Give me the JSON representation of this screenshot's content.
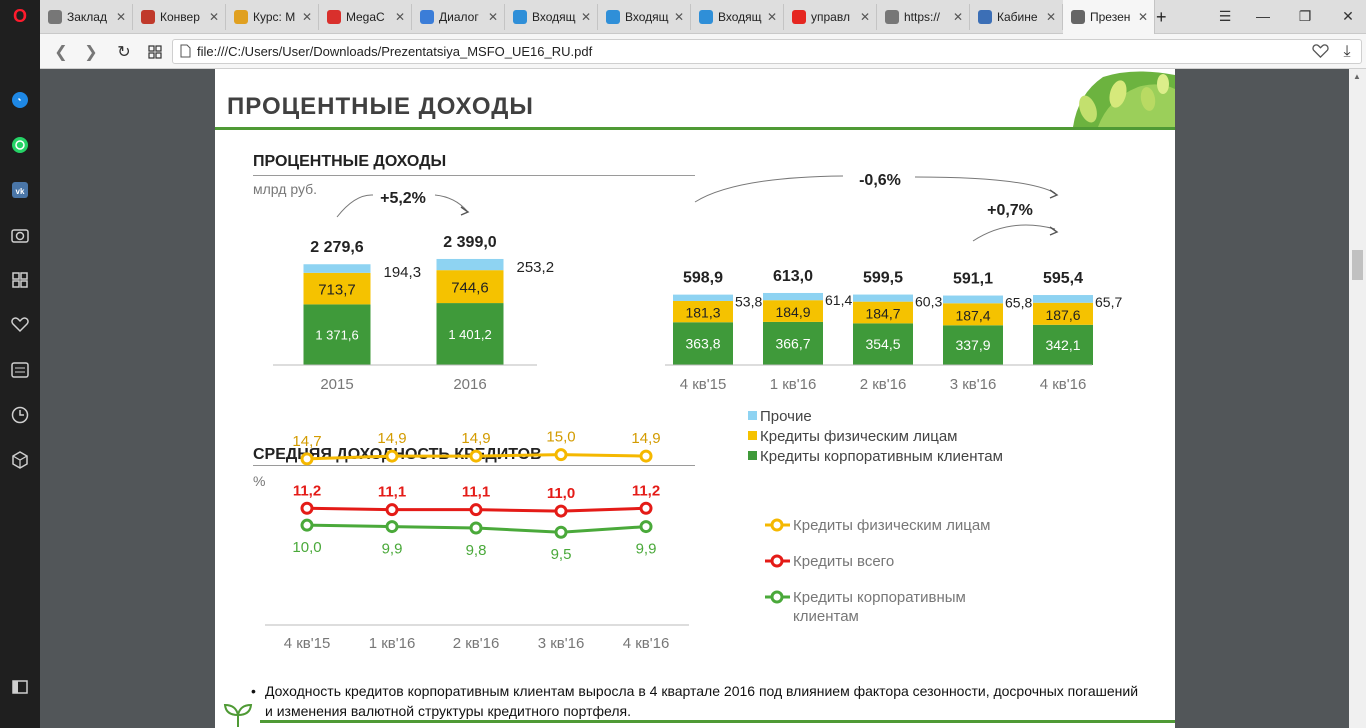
{
  "browser": {
    "tabs": [
      {
        "label": "Заклад",
        "color": "#777777"
      },
      {
        "label": "Конвер",
        "color": "#c0392b"
      },
      {
        "label": "Курс: М",
        "color": "#e0a020"
      },
      {
        "label": "MegaC",
        "color": "#d9302c"
      },
      {
        "label": "Диалог",
        "color": "#3b7dd8"
      },
      {
        "label": "Входящ",
        "color": "#2f8fd8"
      },
      {
        "label": "Входящ",
        "color": "#2f8fd8"
      },
      {
        "label": "Входящ",
        "color": "#2f8fd8"
      },
      {
        "label": "управл",
        "color": "#e52620"
      },
      {
        "label": "https://",
        "color": "#777777"
      },
      {
        "label": "Кабине",
        "color": "#3c6fb6"
      },
      {
        "label": "Презен",
        "color": "#666666"
      }
    ],
    "new_tab": "+",
    "url": "file:///C:/Users/User/Downloads/Prezentatsiya_MSFO_UE16_RU.pdf"
  },
  "slide": {
    "title": "ПРОЦЕНТНЫЕ  ДОХОДЫ",
    "income_heading": "ПРОЦЕНТНЫЕ  ДОХОДЫ",
    "income_unit": "млрд руб.",
    "yield_heading": "СРЕДНЯЯ ДОХОДНОСТЬ КРЕДИТОВ",
    "yield_unit": "%",
    "bullet": "Доходность кредитов корпоративным клиентам выросла в 4 квартале 2016 под влиянием фактора сезонности, досрочных погашений и изменения валютной структуры кредитного портфеля."
  },
  "chart_data": [
    {
      "type": "bar",
      "stacked": true,
      "categories": [
        "2015",
        "2016"
      ],
      "series": [
        {
          "name": "Кредиты корпоративным клиентам",
          "values": [
            1371.6,
            1401.2
          ],
          "labels": [
            "1 371,6",
            "1 401,2"
          ],
          "color": "#3f9a3a"
        },
        {
          "name": "Кредиты физическим лицам",
          "values": [
            713.7,
            744.6
          ],
          "labels": [
            "713,7",
            "744,6"
          ],
          "color": "#f5c200"
        },
        {
          "name": "Прочие",
          "values": [
            194.3,
            253.2
          ],
          "labels": [
            "194,3",
            "253,2"
          ],
          "color": "#8ed3f2"
        }
      ],
      "totals": [
        "2 279,6",
        "2 399,0"
      ],
      "growth": "+5,2%"
    },
    {
      "type": "bar",
      "stacked": true,
      "categories": [
        "4 кв'15",
        "1 кв'16",
        "2 кв'16",
        "3 кв'16",
        "4 кв'16"
      ],
      "series": [
        {
          "name": "Кредиты корпоративным клиентам",
          "values": [
            363.8,
            366.7,
            354.5,
            337.9,
            342.1
          ],
          "labels": [
            "363,8",
            "366,7",
            "354,5",
            "337,9",
            "342,1"
          ],
          "color": "#3f9a3a"
        },
        {
          "name": "Кредиты физическим лицам",
          "values": [
            181.3,
            184.9,
            184.7,
            187.4,
            187.6
          ],
          "labels": [
            "181,3",
            "184,9",
            "184,7",
            "187,4",
            "187,6"
          ],
          "color": "#f5c200"
        },
        {
          "name": "Прочие",
          "values": [
            53.8,
            61.4,
            60.3,
            65.8,
            65.7
          ],
          "labels": [
            "53,8",
            "61,4",
            "60,3",
            "65,8",
            "65,7"
          ],
          "color": "#8ed3f2"
        }
      ],
      "totals": [
        "598,9",
        "613,0",
        "599,5",
        "591,1",
        "595,4"
      ],
      "growth_year": "-0,6%",
      "growth_quarter": "+0,7%",
      "legend": [
        "Прочие",
        "Кредиты физическим лицам",
        "Кредиты корпоративным клиентам"
      ]
    },
    {
      "type": "line",
      "categories": [
        "4 кв'15",
        "1 кв'16",
        "2 кв'16",
        "3 кв'16",
        "4 кв'16"
      ],
      "series": [
        {
          "name": "Кредиты физическим лицам",
          "values": [
            14.7,
            14.9,
            14.9,
            15.0,
            14.9
          ],
          "labels": [
            "14,7",
            "14,9",
            "14,9",
            "15,0",
            "14,9"
          ],
          "color": "#f5b800"
        },
        {
          "name": "Кредиты всего",
          "values": [
            11.2,
            11.1,
            11.1,
            11.0,
            11.2
          ],
          "labels": [
            "11,2",
            "11,1",
            "11,1",
            "11,0",
            "11,2"
          ],
          "color": "#e41b17"
        },
        {
          "name": "Кредиты корпоративным клиентам",
          "values": [
            10.0,
            9.9,
            9.8,
            9.5,
            9.9
          ],
          "labels": [
            "10,0",
            "9,9",
            "9,8",
            "9,5",
            "9,9"
          ],
          "color": "#4aa93a"
        }
      ],
      "legend": [
        "Кредиты физическим лицам",
        "Кредиты всего",
        "Кредиты корпоративным клиентам"
      ]
    }
  ]
}
